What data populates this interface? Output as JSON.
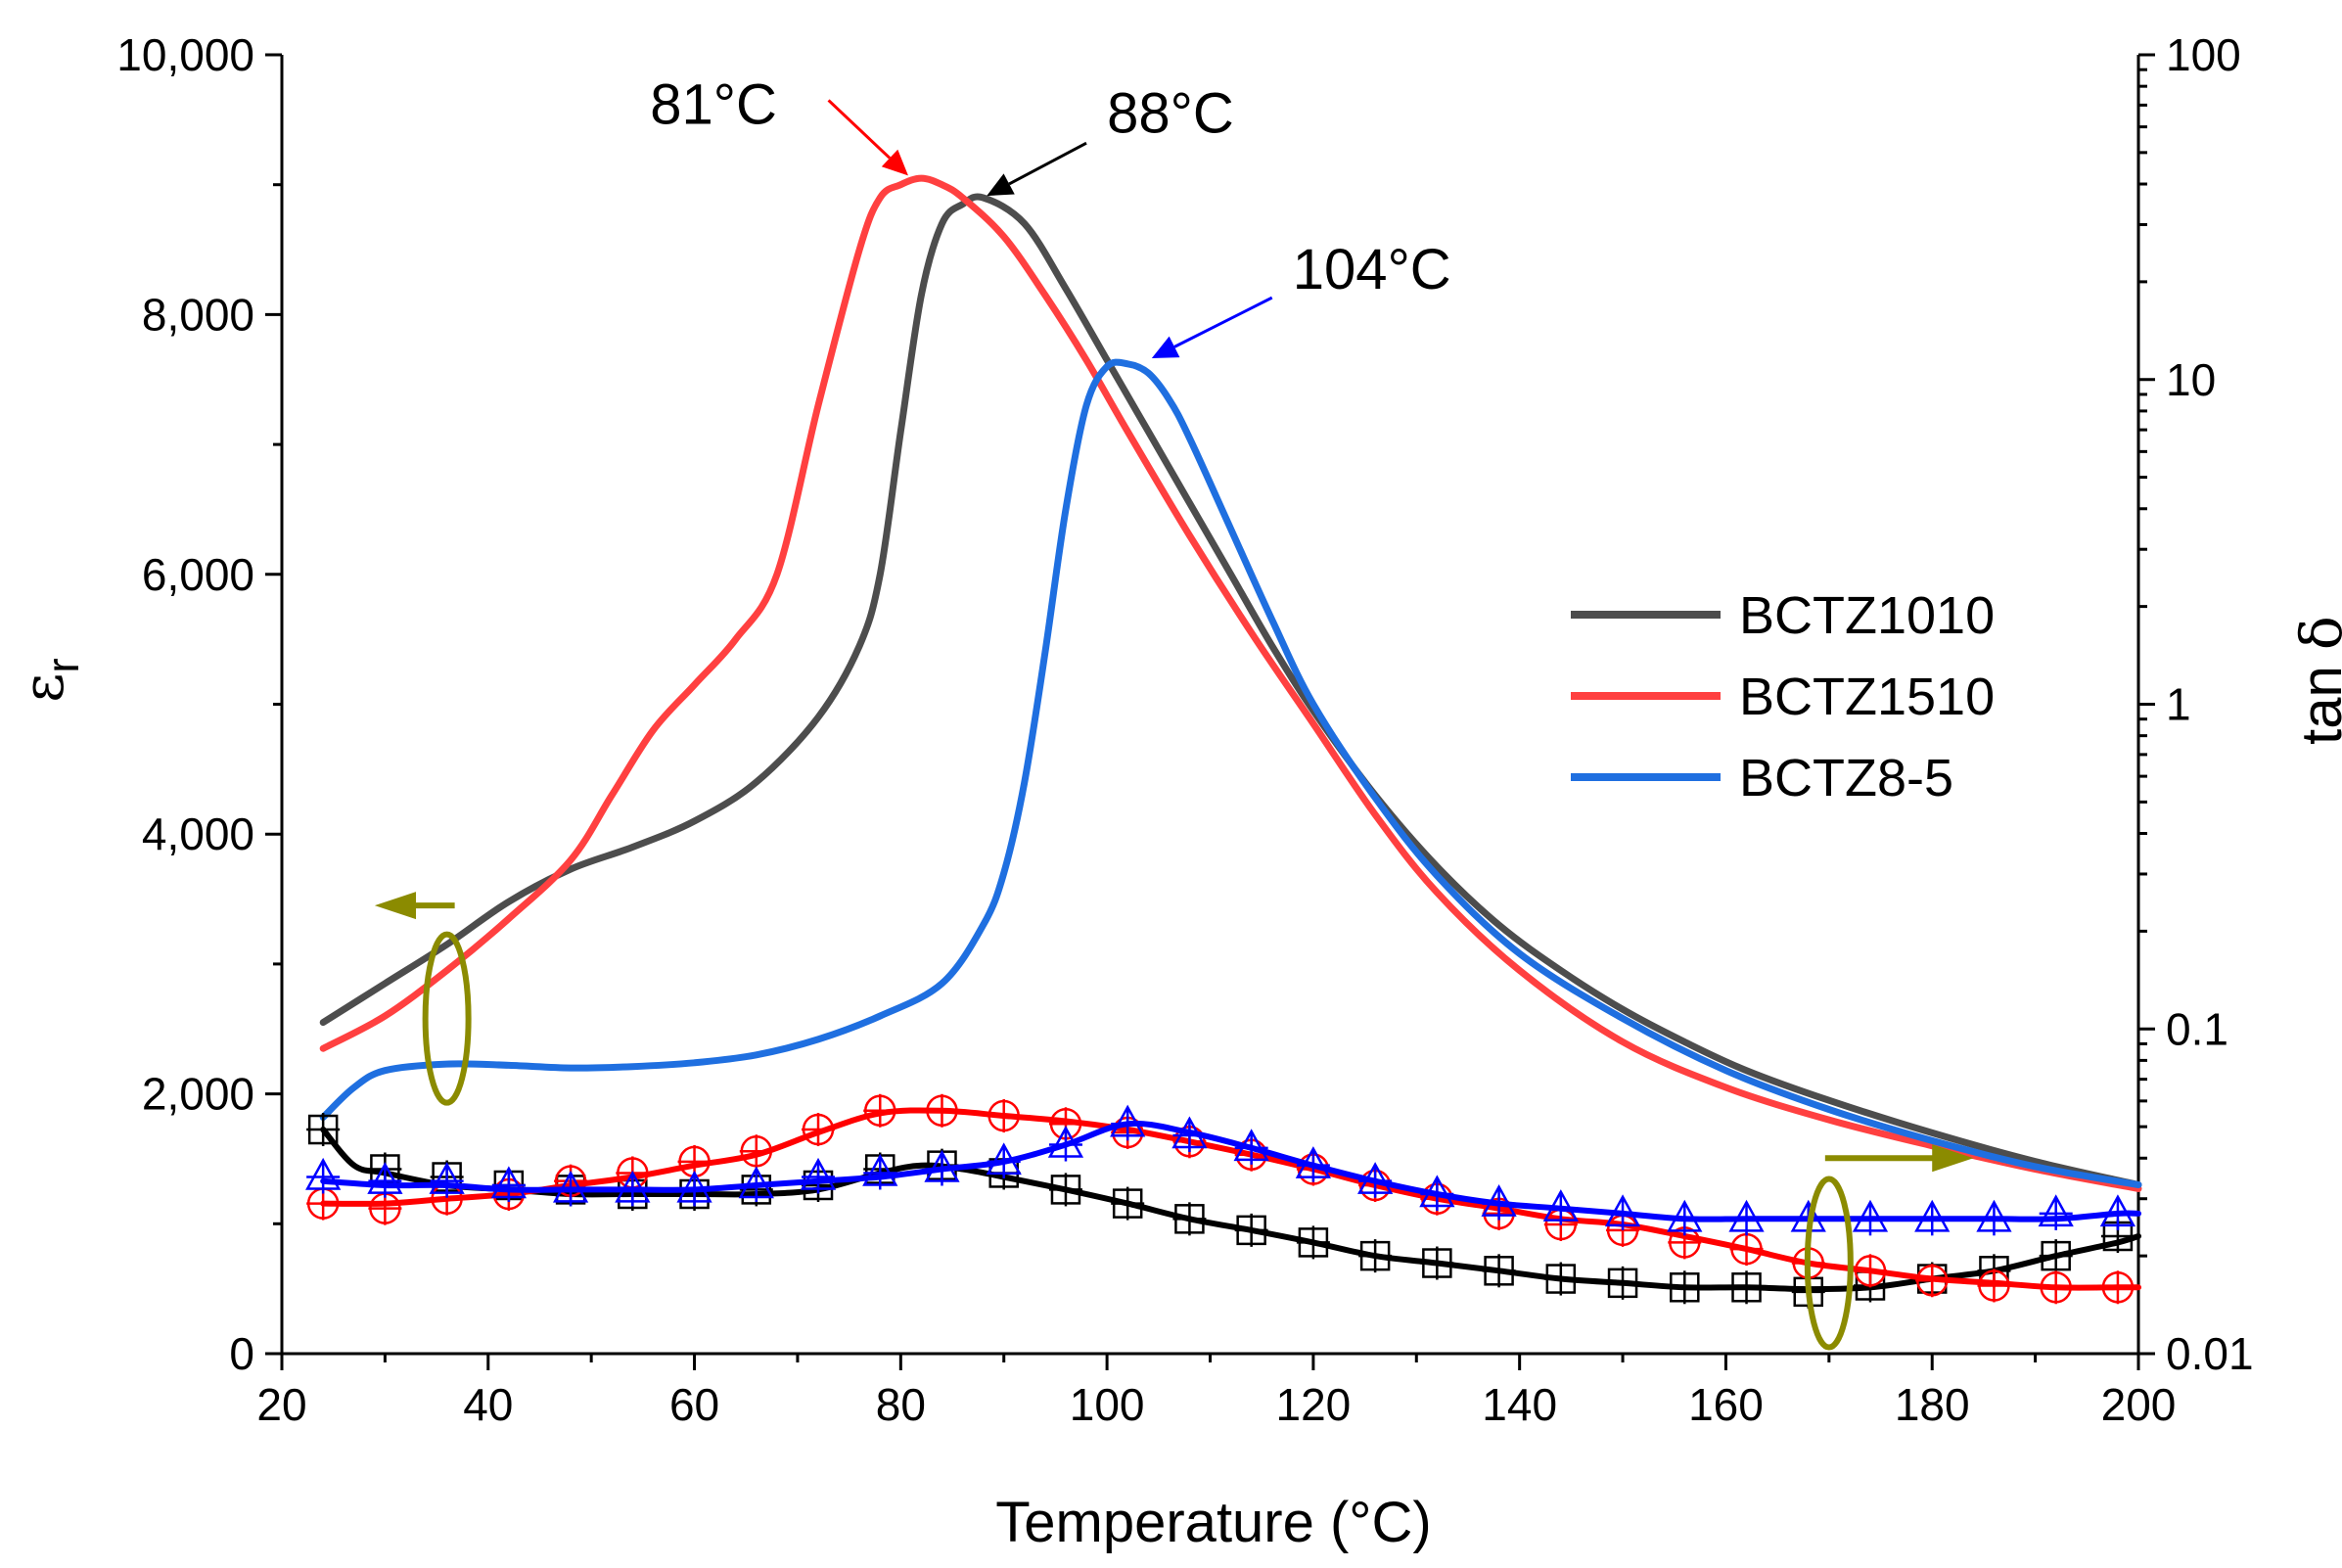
{
  "chart_data": {
    "type": "line",
    "xlabel": "Temperature (°C)",
    "ylabel_left": {
      "symbol": "ε",
      "subscript": "r"
    },
    "ylabel_right": {
      "text": "tan ",
      "symbol": "δ"
    },
    "xlim": [
      20,
      200
    ],
    "ylim_left": [
      0,
      10000
    ],
    "ylim_right": [
      0.01,
      100
    ],
    "right_scale": "log",
    "grid": false,
    "legend_position": "right-middle",
    "x_ticks": [
      20,
      40,
      60,
      80,
      100,
      120,
      140,
      160,
      180,
      200
    ],
    "y_left_ticks": [
      0,
      2000,
      4000,
      6000,
      8000,
      10000
    ],
    "y_left_tick_labels": [
      "0",
      "2,000",
      "4,000",
      "6,000",
      "8,000",
      "10,000"
    ],
    "y_right_ticks": [
      0.01,
      0.1,
      1,
      10,
      100
    ],
    "y_right_tick_labels": [
      "0.01",
      "0.1",
      "1",
      "10",
      "100"
    ],
    "permittivity_series": [
      {
        "name": "BCTZ1010",
        "color": "#4d4d4d",
        "x": [
          24,
          30,
          36,
          42,
          48,
          54,
          60,
          66,
          72,
          76,
          78,
          80,
          82,
          84,
          86,
          88,
          92,
          96,
          100,
          104,
          108,
          112,
          116,
          120,
          126,
          132,
          138,
          144,
          150,
          156,
          162,
          170,
          180,
          190,
          200
        ],
        "y": [
          2550,
          2850,
          3150,
          3480,
          3730,
          3900,
          4100,
          4400,
          4900,
          5450,
          6000,
          7100,
          8150,
          8700,
          8850,
          8900,
          8700,
          8200,
          7650,
          7100,
          6550,
          6000,
          5450,
          4950,
          4300,
          3750,
          3300,
          2950,
          2650,
          2400,
          2180,
          1950,
          1700,
          1480,
          1300
        ]
      },
      {
        "name": "BCTZ1510",
        "color": "#ff4040",
        "x": [
          24,
          30,
          36,
          42,
          48,
          52,
          56,
          60,
          64,
          68,
          72,
          76,
          78,
          80,
          82,
          84,
          86,
          90,
          94,
          98,
          102,
          108,
          114,
          120,
          126,
          132,
          140,
          150,
          160,
          170,
          180,
          190,
          200
        ],
        "y": [
          2350,
          2600,
          2950,
          3350,
          3800,
          4300,
          4800,
          5150,
          5500,
          6000,
          7300,
          8500,
          8900,
          9000,
          9050,
          9000,
          8900,
          8600,
          8150,
          7650,
          7100,
          6300,
          5550,
          4850,
          4150,
          3550,
          2950,
          2400,
          2050,
          1800,
          1600,
          1420,
          1270
        ]
      },
      {
        "name": "BCTZ8-5",
        "color": "#1f6fe0",
        "x": [
          24,
          27,
          30,
          36,
          42,
          48,
          54,
          60,
          66,
          72,
          78,
          84,
          88,
          90,
          92,
          94,
          96,
          98,
          100,
          102,
          104,
          106,
          108,
          112,
          116,
          120,
          126,
          132,
          140,
          150,
          160,
          170,
          180,
          190,
          200
        ],
        "y": [
          1820,
          2050,
          2180,
          2230,
          2220,
          2200,
          2210,
          2240,
          2300,
          2420,
          2600,
          2850,
          3300,
          3700,
          4400,
          5400,
          6500,
          7300,
          7600,
          7620,
          7550,
          7350,
          7050,
          6350,
          5650,
          5000,
          4280,
          3680,
          3080,
          2580,
          2180,
          1880,
          1640,
          1440,
          1300
        ]
      }
    ],
    "tan_delta_series": [
      {
        "name": "BCTZ1010",
        "color": "#000000",
        "marker": "square-cross",
        "x": [
          24,
          27,
          30,
          36,
          42,
          48,
          54,
          60,
          66,
          72,
          78,
          82,
          86,
          90,
          96,
          102,
          108,
          114,
          120,
          126,
          132,
          138,
          144,
          150,
          156,
          162,
          168,
          174,
          180,
          186,
          192,
          198,
          200
        ],
        "y": [
          0.049,
          0.038,
          0.036,
          0.033,
          0.032,
          0.031,
          0.031,
          0.031,
          0.031,
          0.032,
          0.036,
          0.038,
          0.037,
          0.035,
          0.032,
          0.029,
          0.026,
          0.024,
          0.022,
          0.02,
          0.019,
          0.018,
          0.017,
          0.0165,
          0.016,
          0.016,
          0.0158,
          0.016,
          0.017,
          0.018,
          0.02,
          0.022,
          0.023
        ],
        "marker_x": [
          24,
          30,
          36,
          42,
          48,
          54,
          60,
          66,
          72,
          78,
          84,
          90,
          96,
          102,
          108,
          114,
          120,
          126,
          132,
          138,
          144,
          150,
          156,
          162,
          168,
          174,
          180,
          186,
          192,
          198
        ],
        "marker_y": [
          0.049,
          0.037,
          0.035,
          0.033,
          0.032,
          0.031,
          0.031,
          0.032,
          0.033,
          0.037,
          0.038,
          0.036,
          0.032,
          0.029,
          0.026,
          0.024,
          0.022,
          0.02,
          0.019,
          0.018,
          0.017,
          0.0165,
          0.016,
          0.016,
          0.0155,
          0.0162,
          0.017,
          0.018,
          0.02,
          0.023
        ]
      },
      {
        "name": "BCTZ1510",
        "color": "#ff0000",
        "marker": "circle-cross",
        "x": [
          24,
          30,
          36,
          42,
          48,
          54,
          60,
          66,
          72,
          78,
          84,
          90,
          96,
          102,
          108,
          114,
          120,
          126,
          132,
          138,
          144,
          150,
          156,
          162,
          168,
          174,
          180,
          186,
          192,
          198,
          200
        ],
        "y": [
          0.029,
          0.029,
          0.03,
          0.031,
          0.033,
          0.035,
          0.038,
          0.041,
          0.048,
          0.055,
          0.056,
          0.054,
          0.052,
          0.049,
          0.045,
          0.041,
          0.037,
          0.033,
          0.03,
          0.028,
          0.026,
          0.025,
          0.023,
          0.021,
          0.019,
          0.018,
          0.017,
          0.0165,
          0.016,
          0.016,
          0.016
        ],
        "marker_x": [
          24,
          30,
          36,
          42,
          48,
          54,
          60,
          66,
          72,
          78,
          84,
          90,
          96,
          102,
          108,
          114,
          120,
          126,
          132,
          138,
          144,
          150,
          156,
          162,
          168,
          174,
          180,
          186,
          192,
          198
        ],
        "marker_y": [
          0.029,
          0.028,
          0.03,
          0.031,
          0.034,
          0.036,
          0.039,
          0.042,
          0.049,
          0.056,
          0.056,
          0.054,
          0.051,
          0.048,
          0.045,
          0.041,
          0.037,
          0.033,
          0.03,
          0.027,
          0.025,
          0.024,
          0.022,
          0.021,
          0.019,
          0.018,
          0.0168,
          0.0162,
          0.016,
          0.016
        ]
      },
      {
        "name": "BCTZ8-5",
        "color": "#0000ff",
        "marker": "triangle-cross",
        "x": [
          24,
          30,
          36,
          42,
          48,
          54,
          60,
          66,
          72,
          78,
          84,
          90,
          96,
          102,
          108,
          114,
          120,
          126,
          132,
          138,
          144,
          150,
          156,
          162,
          168,
          174,
          180,
          186,
          192,
          198,
          200
        ],
        "y": [
          0.034,
          0.033,
          0.033,
          0.032,
          0.032,
          0.032,
          0.032,
          0.033,
          0.034,
          0.035,
          0.037,
          0.039,
          0.044,
          0.051,
          0.048,
          0.043,
          0.038,
          0.034,
          0.031,
          0.029,
          0.028,
          0.027,
          0.026,
          0.026,
          0.026,
          0.026,
          0.026,
          0.026,
          0.026,
          0.027,
          0.027
        ],
        "marker_x": [
          24,
          30,
          36,
          42,
          48,
          54,
          60,
          66,
          72,
          78,
          84,
          90,
          96,
          102,
          108,
          114,
          120,
          126,
          132,
          138,
          144,
          150,
          156,
          162,
          168,
          174,
          180,
          186,
          192,
          198
        ],
        "marker_y": [
          0.035,
          0.034,
          0.034,
          0.033,
          0.032,
          0.032,
          0.032,
          0.033,
          0.035,
          0.036,
          0.037,
          0.039,
          0.044,
          0.051,
          0.047,
          0.043,
          0.038,
          0.034,
          0.031,
          0.029,
          0.028,
          0.027,
          0.026,
          0.026,
          0.026,
          0.026,
          0.026,
          0.026,
          0.027,
          0.027
        ]
      }
    ],
    "peak_annotations": [
      {
        "label": "81°C",
        "x": 81,
        "y": 9050,
        "color": "#ff0000"
      },
      {
        "label": "88°C",
        "x": 88,
        "y": 8900,
        "color": "#000000"
      },
      {
        "label": "104°C",
        "x": 104,
        "y": 7650,
        "color": "#0000ff"
      }
    ],
    "axis_indicators": {
      "color": "#8b8b00",
      "left_axis_marker": "ellipse-with-left-arrow",
      "right_axis_marker": "ellipse-with-right-arrow"
    },
    "legend": [
      {
        "label": "BCTZ1010",
        "color": "#4d4d4d"
      },
      {
        "label": "BCTZ1510",
        "color": "#ff4040"
      },
      {
        "label": "BCTZ8-5",
        "color": "#1f6fe0"
      }
    ]
  }
}
